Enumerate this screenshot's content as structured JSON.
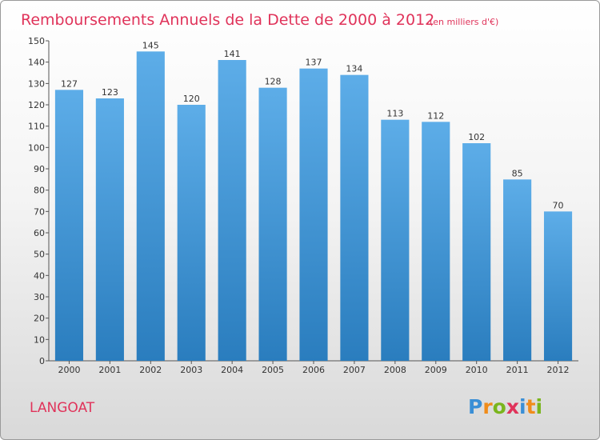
{
  "chart_data": {
    "type": "bar",
    "title": "Remboursements Annuels de la Dette de 2000 à 2012",
    "subtitle": "(en milliers d'€)",
    "categories": [
      "2000",
      "2001",
      "2002",
      "2003",
      "2004",
      "2005",
      "2006",
      "2007",
      "2008",
      "2009",
      "2010",
      "2011",
      "2012"
    ],
    "values": [
      127,
      123,
      145,
      120,
      141,
      128,
      137,
      134,
      113,
      112,
      102,
      85,
      70
    ],
    "ylim": [
      0,
      150
    ],
    "yticks": [
      0,
      10,
      20,
      30,
      40,
      50,
      60,
      70,
      80,
      90,
      100,
      110,
      120,
      130,
      140,
      150
    ],
    "grid": false,
    "bar_color_top": "#5dade8",
    "bar_color_bottom": "#2a7dbe",
    "xlabel": "",
    "ylabel": ""
  },
  "place_name": "LANGOAT",
  "logo": {
    "letters": [
      "P",
      "r",
      "o",
      "x",
      "i",
      "t",
      "i"
    ],
    "colors": [
      "#3a8fd6",
      "#f08c1a",
      "#7ab51d",
      "#e0335a",
      "#3a8fd6",
      "#f08c1a",
      "#7ab51d"
    ]
  },
  "colors": {
    "accent": "#e0335a"
  }
}
